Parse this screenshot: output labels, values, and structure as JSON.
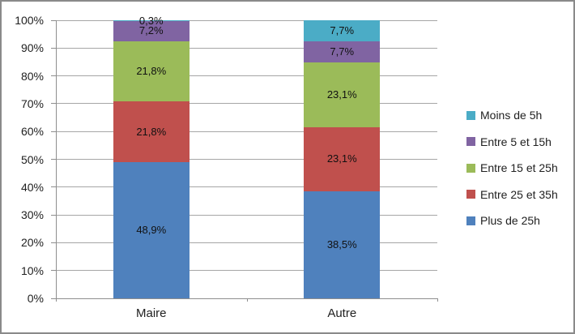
{
  "chart_data": {
    "type": "bar",
    "variant": "stacked-100-percent",
    "title": "",
    "categories": [
      "Maire",
      "Autre"
    ],
    "series": [
      {
        "name": "Plus de 25h",
        "color": "#4F81BD",
        "values": [
          48.9,
          38.5
        ],
        "data_labels": [
          "48,9%",
          "38,5%"
        ]
      },
      {
        "name": "Entre 25 et 35h",
        "color": "#C0504D",
        "values": [
          21.8,
          23.1
        ],
        "data_labels": [
          "21,8%",
          "23,1%"
        ]
      },
      {
        "name": "Entre 15 et 25h",
        "color": "#9BBB59",
        "values": [
          21.8,
          23.1
        ],
        "data_labels": [
          "21,8%",
          "23,1%"
        ]
      },
      {
        "name": "Entre 5 et 15h",
        "color": "#8064A2",
        "values": [
          7.2,
          7.7
        ],
        "data_labels": [
          "7,2%",
          "7,7%"
        ]
      },
      {
        "name": "Moins de 5h",
        "color": "#4BACC6",
        "values": [
          0.3,
          7.7
        ],
        "data_labels": [
          "0,3%",
          "7,7%"
        ]
      }
    ],
    "legend": {
      "position": "right",
      "items": [
        "Moins de 5h",
        "Entre 5 et 15h",
        "Entre 15 et 25h",
        "Entre 25 et 35h",
        "Plus de 25h"
      ]
    },
    "y_axis": {
      "min": 0,
      "max": 100,
      "ticks": [
        "0%",
        "10%",
        "20%",
        "30%",
        "40%",
        "50%",
        "60%",
        "70%",
        "80%",
        "90%",
        "100%"
      ],
      "grid": true
    },
    "x_axis": {
      "ticks_between_categories": true
    },
    "colors": {
      "gridline": "#A6A6A6",
      "axis": "#8E8E8E",
      "border": "#8A8A8A",
      "text": "#212121",
      "background": "#FFFFFF"
    }
  }
}
